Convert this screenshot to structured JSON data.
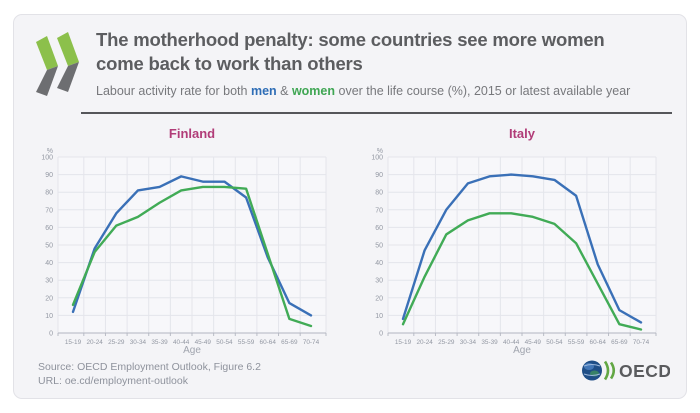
{
  "header": {
    "title_line1": "The motherhood penalty: some countries see more women",
    "title_line2": "come back to work than others",
    "subtitle_prefix": "Labour activity rate for both ",
    "subtitle_men": "men",
    "subtitle_amp": " & ",
    "subtitle_women": "women",
    "subtitle_suffix": " over the life course (%), 2015 or latest available year"
  },
  "colors": {
    "men_line": "#3a70b7",
    "women_line": "#41ab56",
    "chart_title": "#b13c78",
    "logo_green": "#8cc04b",
    "logo_gray": "#6d6e71",
    "globe_blue": "#1f4e87"
  },
  "chart_data": [
    {
      "type": "line",
      "title": "Finland",
      "xlabel": "Age",
      "ylabel": "%",
      "ylim": [
        0,
        100
      ],
      "ytick_step": 10,
      "grid": true,
      "categories": [
        "15-19",
        "20-24",
        "25-29",
        "30-34",
        "35-39",
        "40-44",
        "45-49",
        "50-54",
        "55-59",
        "60-64",
        "65-69",
        "70-74"
      ],
      "series": [
        {
          "name": "men",
          "color": "#3a70b7",
          "values": [
            12,
            48,
            68,
            81,
            83,
            89,
            86,
            86,
            77,
            43,
            17,
            10
          ]
        },
        {
          "name": "women",
          "color": "#41ab56",
          "values": [
            16,
            46,
            61,
            66,
            74,
            81,
            83,
            83,
            82,
            45,
            8,
            4
          ]
        }
      ]
    },
    {
      "type": "line",
      "title": "Italy",
      "xlabel": "Age",
      "ylabel": "%",
      "ylim": [
        0,
        100
      ],
      "ytick_step": 10,
      "grid": true,
      "categories": [
        "15-19",
        "20-24",
        "25-29",
        "30-34",
        "35-39",
        "40-44",
        "45-49",
        "50-54",
        "55-59",
        "60-64",
        "65-69",
        "70-74"
      ],
      "series": [
        {
          "name": "men",
          "color": "#3a70b7",
          "values": [
            8,
            47,
            70,
            85,
            89,
            90,
            89,
            87,
            78,
            39,
            13,
            6
          ]
        },
        {
          "name": "women",
          "color": "#41ab56",
          "values": [
            5,
            32,
            56,
            64,
            68,
            68,
            66,
            62,
            51,
            28,
            5,
            2
          ]
        }
      ]
    }
  ],
  "footer": {
    "source_line1": "Source: OECD Employment Outlook, Figure 6.2",
    "source_line2": "URL: oe.cd/employment-outlook",
    "logo_text": "OECD"
  }
}
